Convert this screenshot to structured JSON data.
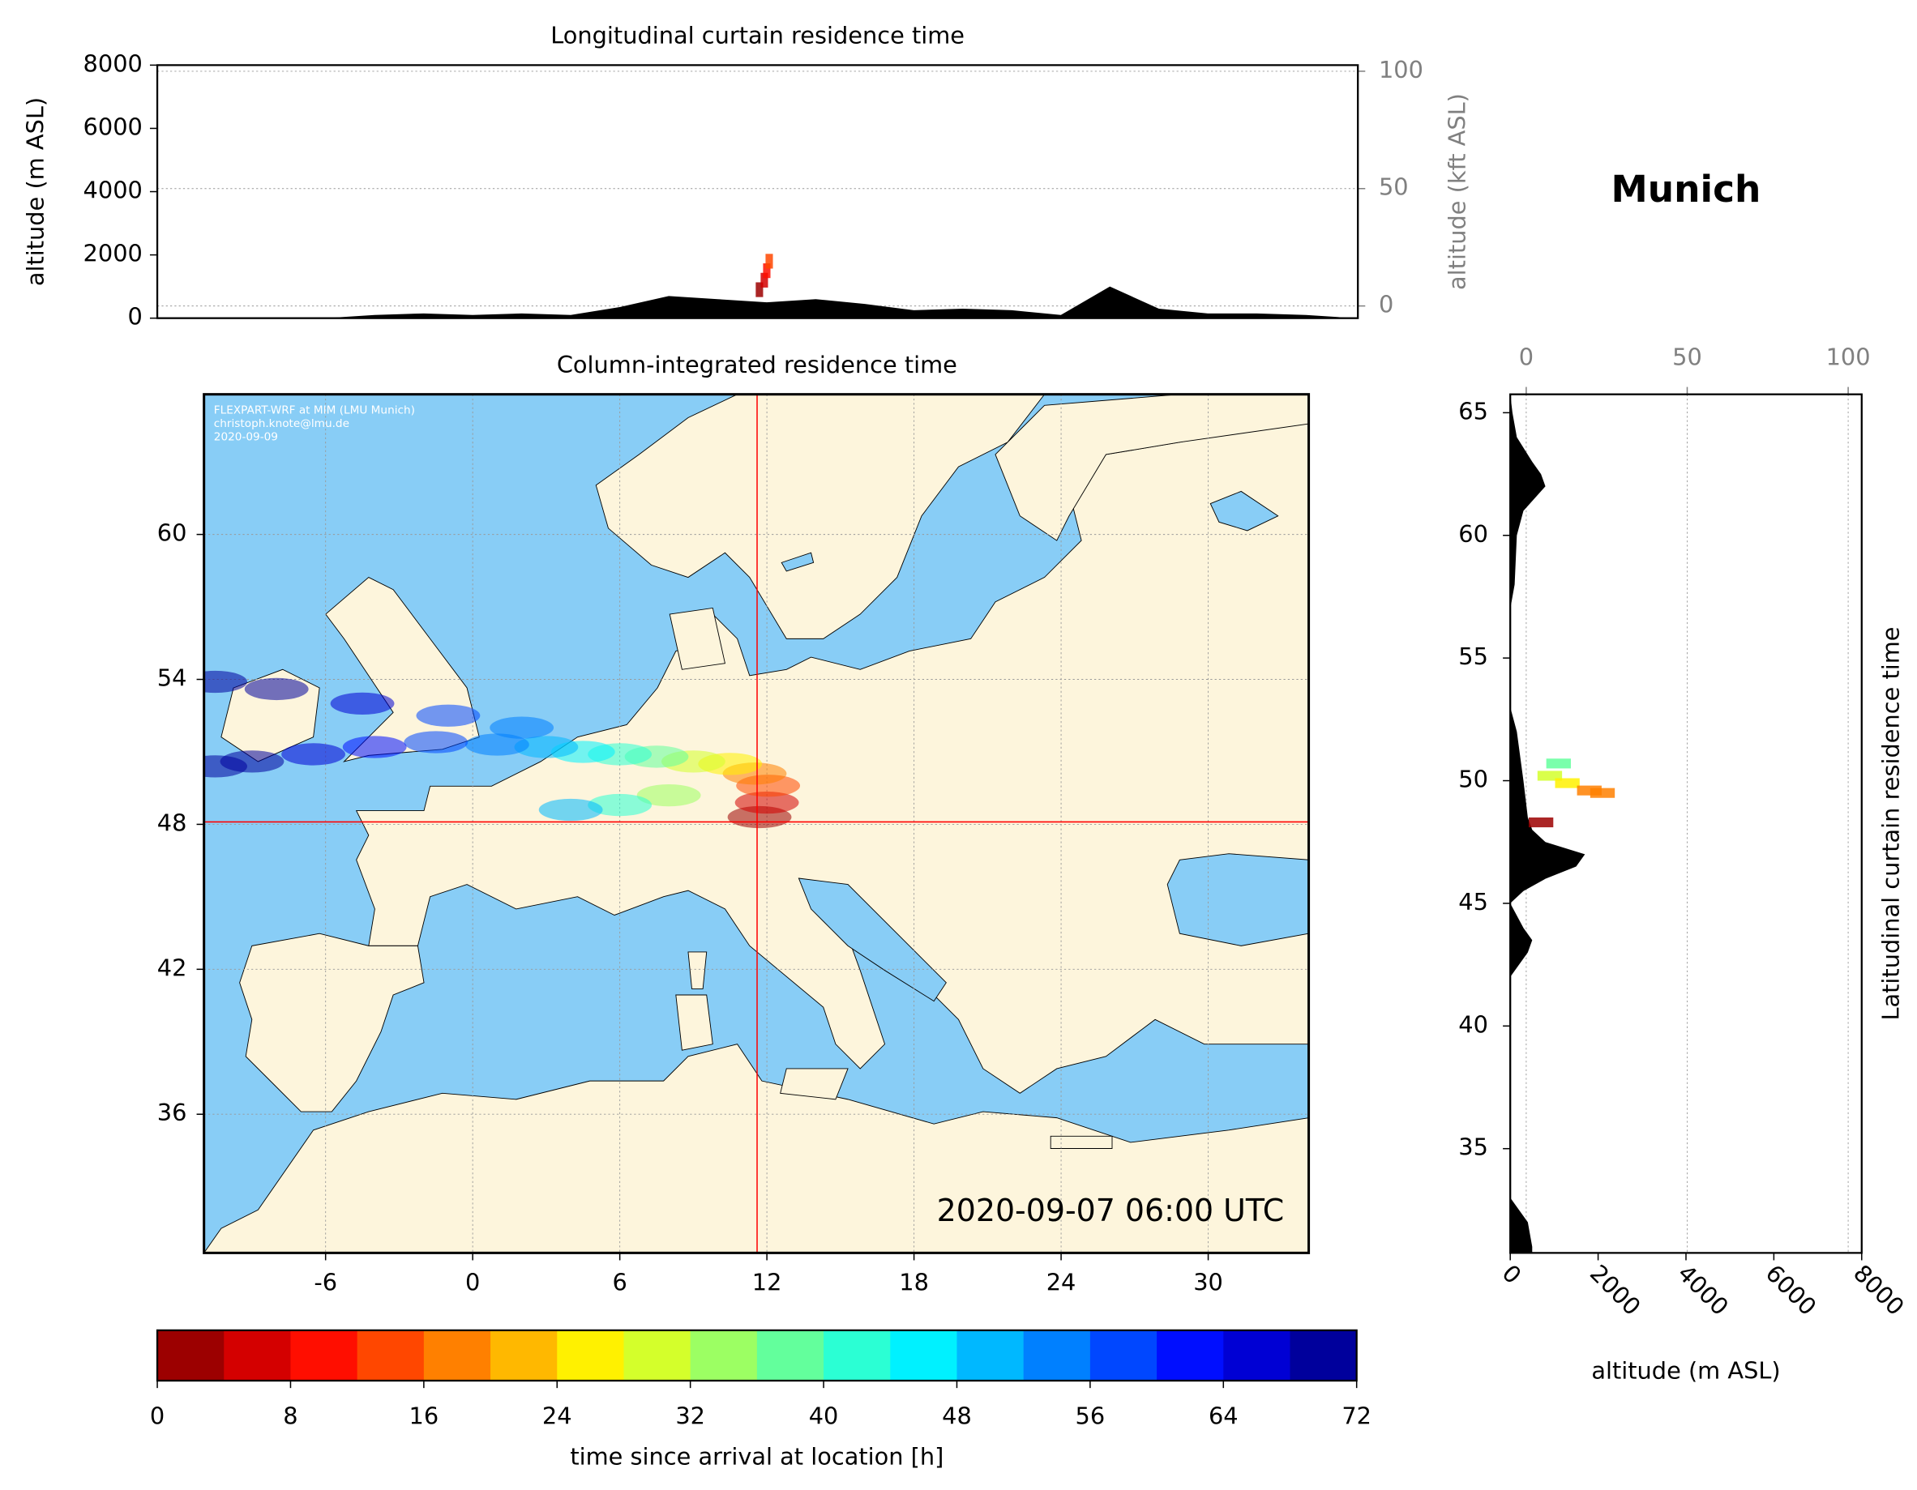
{
  "chart_data": [
    {
      "type": "area",
      "title": "Longitudinal curtain residence time",
      "ylabel": "altitude (m ASL)",
      "y2label": "altitude (kft ASL)",
      "xlim": [
        -12.87,
        36.12
      ],
      "ylim": [
        0,
        8000
      ],
      "yticks": [
        0,
        2000,
        4000,
        6000,
        8000
      ],
      "y2lim": [
        -5.2,
        102.6
      ],
      "y2ticks": [
        0,
        50,
        100
      ],
      "grid": true,
      "color": "#000000",
      "terrain": {
        "x": [
          -12,
          -10,
          -8,
          -6,
          -4,
          -2,
          0,
          2,
          4,
          6,
          8,
          10,
          12,
          14,
          16,
          18,
          20,
          22,
          24,
          26,
          28,
          30,
          32,
          34,
          36
        ],
        "values": [
          0,
          0,
          0,
          0,
          100,
          150,
          100,
          150,
          100,
          350,
          700,
          600,
          500,
          600,
          450,
          250,
          300,
          250,
          100,
          1000,
          300,
          150,
          150,
          100,
          0
        ]
      },
      "plume": [
        {
          "lon": 11.7,
          "altitude": 900,
          "hours": 1
        },
        {
          "lon": 11.9,
          "altitude": 1200,
          "hours": 4
        },
        {
          "lon": 12.0,
          "altitude": 1500,
          "hours": 8
        },
        {
          "lon": 12.1,
          "altitude": 1800,
          "hours": 12
        }
      ]
    },
    {
      "type": "map",
      "title": "Column-integrated residence time",
      "location": "Munich",
      "credits": [
        "FLEXPART-WRF at MIM (LMU Munich)",
        "christoph.knote@lmu.de",
        "2020-09-09"
      ],
      "timestamp": "2020-09-07 06:00 UTC",
      "xlim": [
        -10.96,
        34.1
      ],
      "ylim": [
        30.26,
        65.8
      ],
      "xticks": [
        -6,
        0,
        6,
        12,
        18,
        24,
        30
      ],
      "yticks": [
        36,
        42,
        48,
        54,
        60
      ],
      "grid": true,
      "marker": {
        "lon": 11.6,
        "lat": 48.1,
        "color": "#ff0000"
      },
      "plume": [
        {
          "lon": 11.7,
          "lat": 48.3,
          "hours": 1
        },
        {
          "lon": 12.0,
          "lat": 48.9,
          "hours": 6
        },
        {
          "lon": 12.05,
          "lat": 49.6,
          "hours": 12
        },
        {
          "lon": 11.5,
          "lat": 50.1,
          "hours": 18
        },
        {
          "lon": 10.5,
          "lat": 50.5,
          "hours": 24
        },
        {
          "lon": 9.0,
          "lat": 50.6,
          "hours": 30
        },
        {
          "lon": 7.5,
          "lat": 50.8,
          "hours": 36
        },
        {
          "lon": 6.0,
          "lat": 50.9,
          "hours": 40
        },
        {
          "lon": 4.5,
          "lat": 51.0,
          "hours": 44
        },
        {
          "lon": 3.0,
          "lat": 51.2,
          "hours": 48
        },
        {
          "lon": 1.0,
          "lat": 51.3,
          "hours": 52
        },
        {
          "lon": -1.5,
          "lat": 51.4,
          "hours": 56
        },
        {
          "lon": -4.0,
          "lat": 51.2,
          "hours": 60
        },
        {
          "lon": -6.5,
          "lat": 50.9,
          "hours": 64
        },
        {
          "lon": -9.0,
          "lat": 50.6,
          "hours": 68
        },
        {
          "lon": -10.5,
          "lat": 50.4,
          "hours": 72
        },
        {
          "lon": 2.0,
          "lat": 52.0,
          "hours": 52
        },
        {
          "lon": -1.0,
          "lat": 52.5,
          "hours": 58
        },
        {
          "lon": -4.5,
          "lat": 53.0,
          "hours": 64
        },
        {
          "lon": -8.0,
          "lat": 53.6,
          "hours": 68
        },
        {
          "lon": -10.5,
          "lat": 53.9,
          "hours": 72
        },
        {
          "lon": 8.0,
          "lat": 49.2,
          "hours": 34
        },
        {
          "lon": 6.0,
          "lat": 48.8,
          "hours": 42
        },
        {
          "lon": 4.0,
          "lat": 48.6,
          "hours": 50
        }
      ]
    },
    {
      "type": "profile",
      "title": "Latitudinal curtain residence time",
      "xlabel": "altitude (m ASL)",
      "xlim": [
        0,
        8000
      ],
      "xticks": [
        0,
        2000,
        4000,
        6000,
        8000
      ],
      "x2lim": [
        -4.96,
        104.2
      ],
      "x2ticks": [
        0,
        50,
        100
      ],
      "ylim": [
        30.75,
        65.75
      ],
      "yticks": [
        35,
        40,
        45,
        50,
        55,
        60,
        65
      ],
      "grid": true,
      "color": "#000000",
      "terrain": {
        "y": [
          30.75,
          31,
          32,
          33,
          42,
          43,
          43.5,
          44,
          45,
          45.5,
          46,
          46.5,
          47,
          47.5,
          48,
          48.5,
          50,
          52,
          53,
          57,
          58,
          60,
          61,
          62,
          62.5,
          63,
          64,
          65,
          65.75
        ],
        "values": [
          500,
          500,
          400,
          0,
          0,
          400,
          500,
          300,
          0,
          300,
          800,
          1500,
          1700,
          800,
          500,
          400,
          300,
          150,
          0,
          0,
          100,
          150,
          300,
          800,
          700,
          500,
          150,
          50,
          0
        ]
      },
      "plume": [
        {
          "lat": 50.7,
          "altitude": 1100,
          "hours": 36
        },
        {
          "lat": 50.2,
          "altitude": 900,
          "hours": 28
        },
        {
          "lat": 49.9,
          "altitude": 1300,
          "hours": 24
        },
        {
          "lat": 49.6,
          "altitude": 1800,
          "hours": 18
        },
        {
          "lat": 49.5,
          "altitude": 2100,
          "hours": 16
        },
        {
          "lat": 48.3,
          "altitude": 700,
          "hours": 1
        }
      ]
    },
    {
      "type": "colorbar",
      "xlabel": "time since arrival at location [h]",
      "xlim": [
        0,
        72
      ],
      "xticks": [
        0,
        8,
        16,
        24,
        32,
        40,
        48,
        56,
        64,
        72
      ],
      "colors": [
        "#9c0000",
        "#d40000",
        "#ff0e00",
        "#ff4700",
        "#ff8000",
        "#ffb800",
        "#fff100",
        "#d4ff2b",
        "#9cff63",
        "#63ff9c",
        "#2bffd4",
        "#00f1ff",
        "#00b8ff",
        "#0080ff",
        "#0047ff",
        "#000eff",
        "#0000d4",
        "#00009c"
      ]
    }
  ]
}
